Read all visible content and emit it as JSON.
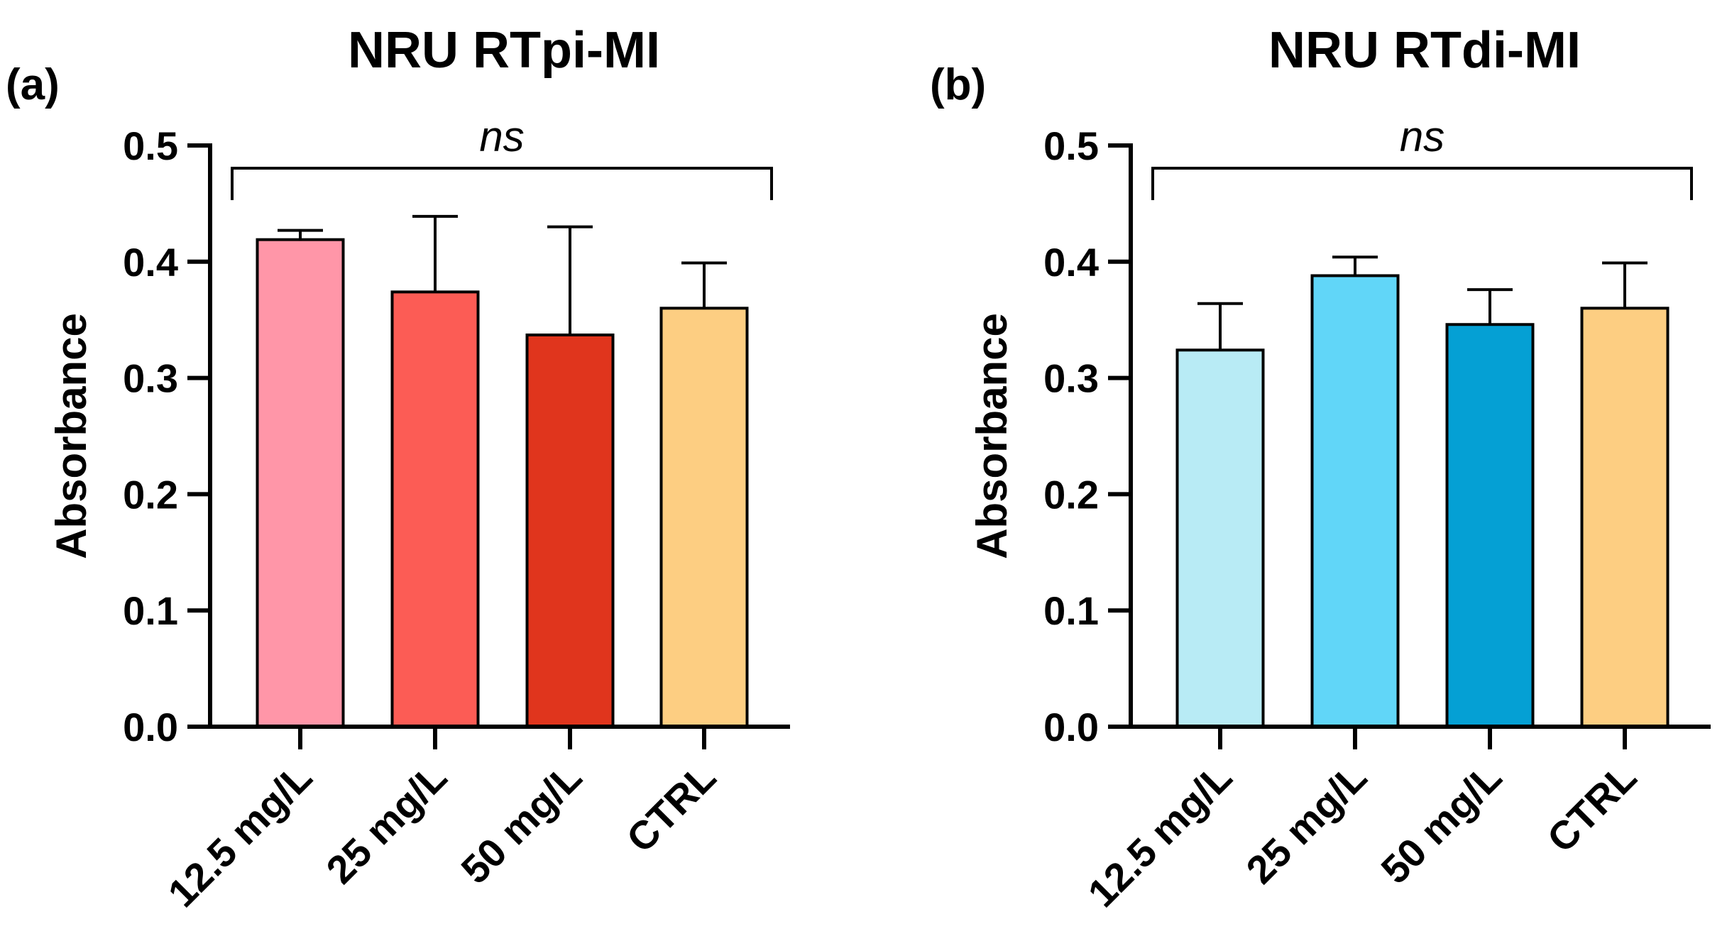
{
  "chart_data": [
    {
      "panel": "(a)",
      "type": "bar",
      "title": "NRU RTpi-MI",
      "xlabel": "",
      "ylabel": "Absorbance",
      "ylim": [
        0,
        0.5
      ],
      "yticks": [
        "0.0",
        "0.1",
        "0.2",
        "0.3",
        "0.4",
        "0.5"
      ],
      "categories": [
        "12.5 mg/L",
        "25 mg/L",
        "50 mg/L",
        "CTRL"
      ],
      "values": [
        0.419,
        0.374,
        0.337,
        0.36
      ],
      "errors": [
        0.008,
        0.065,
        0.093,
        0.039
      ],
      "colors": [
        "#FF96A8",
        "#FC5C55",
        "#E0351D",
        "#FDCE82"
      ],
      "significance": "ns"
    },
    {
      "panel": "(b)",
      "type": "bar",
      "title": "NRU RTdi-MI",
      "xlabel": "",
      "ylabel": "Absorbance",
      "ylim": [
        0,
        0.5
      ],
      "yticks": [
        "0.0",
        "0.1",
        "0.2",
        "0.3",
        "0.4",
        "0.5"
      ],
      "categories": [
        "12.5 mg/L",
        "25 mg/L",
        "50 mg/L",
        "CTRL"
      ],
      "values": [
        0.324,
        0.388,
        0.346,
        0.36
      ],
      "errors": [
        0.04,
        0.016,
        0.03,
        0.039
      ],
      "colors": [
        "#B8EBF5",
        "#61D6F8",
        "#05A0D4",
        "#FDCE82"
      ],
      "significance": "ns"
    }
  ]
}
